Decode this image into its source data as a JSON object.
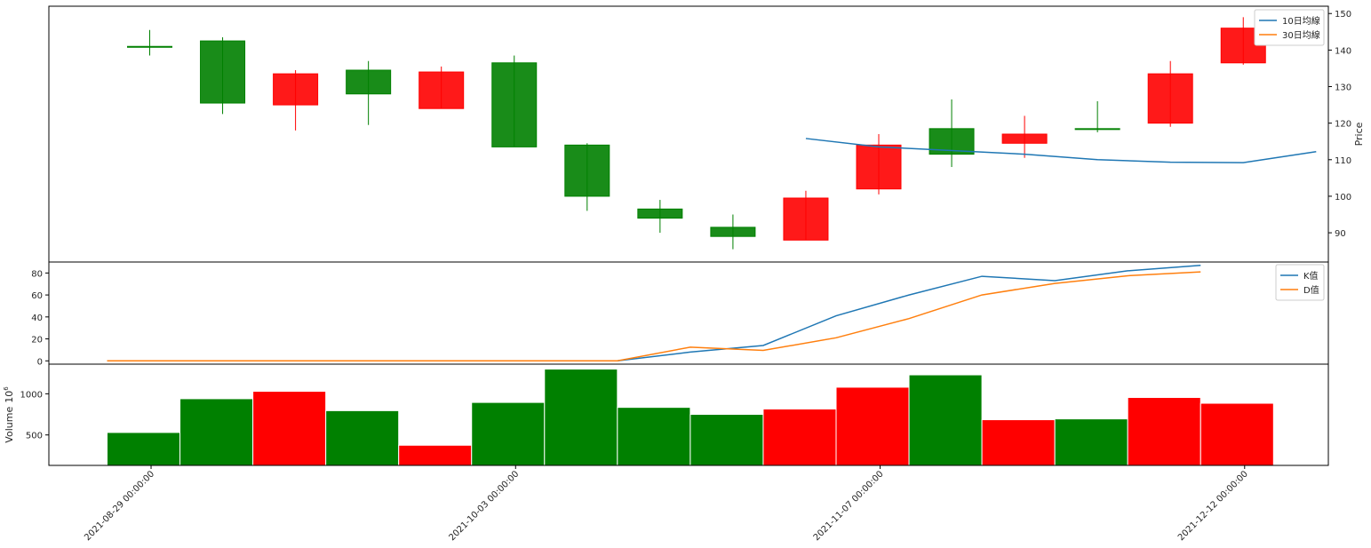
{
  "chart_data": [
    {
      "type": "candlestick",
      "panel": "price",
      "ylabel": "Price",
      "ylim": [
        82,
        152
      ],
      "yticks": [
        90,
        100,
        110,
        120,
        130,
        140,
        150
      ],
      "legend_position": "top-right",
      "up_color": "#ff0000",
      "down_color": "#008000",
      "candles": [
        {
          "open": 141,
          "high": 145.5,
          "low": 138.5,
          "close": 141
        },
        {
          "open": 142.5,
          "high": 143.5,
          "low": 122.5,
          "close": 125.5
        },
        {
          "open": 125,
          "high": 134.5,
          "low": 118,
          "close": 133.5
        },
        {
          "open": 134.5,
          "high": 137,
          "low": 119.5,
          "close": 128
        },
        {
          "open": 124,
          "high": 135.5,
          "low": 124,
          "close": 134
        },
        {
          "open": 136.5,
          "high": 138.5,
          "low": 113.5,
          "close": 113.5
        },
        {
          "open": 114,
          "high": 114.5,
          "low": 96,
          "close": 100
        },
        {
          "open": 96.5,
          "high": 99,
          "low": 90,
          "close": 94
        },
        {
          "open": 91.5,
          "high": 95,
          "low": 85.5,
          "close": 89
        },
        {
          "open": 88,
          "high": 101.5,
          "low": 88,
          "close": 99.5
        },
        {
          "open": 102,
          "high": 117,
          "low": 100.5,
          "close": 114
        },
        {
          "open": 118.5,
          "high": 126.5,
          "low": 108,
          "close": 111.5
        },
        {
          "open": 114.5,
          "high": 122,
          "low": 110.5,
          "close": 117
        },
        {
          "open": 118.5,
          "high": 126,
          "low": 117.5,
          "close": 118.5
        },
        {
          "open": 120,
          "high": 137,
          "low": 119,
          "close": 133.5
        },
        {
          "open": 136.5,
          "high": 149,
          "low": 136,
          "close": 146
        }
      ],
      "series": [
        {
          "name": "10日均線",
          "color": "#1f77b4",
          "start_index": 9,
          "values": [
            115.8,
            113.5,
            112.5,
            111.5,
            110,
            109.3,
            109.2,
            112.2
          ]
        },
        {
          "name": "30日均線",
          "color": "#ff7f0e",
          "values": []
        }
      ]
    },
    {
      "type": "line",
      "panel": "kd",
      "ylim": [
        -3,
        90
      ],
      "yticks": [
        0,
        20,
        40,
        60,
        80
      ],
      "legend_position": "top-right",
      "series": [
        {
          "name": "K值",
          "color": "#1f77b4",
          "values": [
            0,
            0,
            0,
            0,
            0,
            0,
            0,
            0,
            8,
            14,
            41,
            60,
            77,
            73,
            82,
            87
          ]
        },
        {
          "name": "D值",
          "color": "#ff7f0e",
          "values": [
            0,
            0,
            0,
            0,
            0,
            0,
            0,
            0,
            12.5,
            9.5,
            21,
            38.5,
            60,
            70.5,
            77.5,
            81
          ]
        }
      ]
    },
    {
      "type": "bar",
      "panel": "volume",
      "ylabel_main": "Volume",
      "ylabel_exp": "10",
      "ylabel_sup": "6",
      "ylim": [
        130,
        1360
      ],
      "yticks": [
        500,
        1000
      ],
      "values": [
        530,
        940,
        1030,
        795,
        375,
        895,
        1300,
        835,
        750,
        815,
        1080,
        1230,
        685,
        695,
        955,
        885
      ],
      "colors": [
        "#008000",
        "#008000",
        "#ff0000",
        "#008000",
        "#ff0000",
        "#008000",
        "#008000",
        "#008000",
        "#008000",
        "#ff0000",
        "#ff0000",
        "#008000",
        "#ff0000",
        "#008000",
        "#ff0000",
        "#ff0000"
      ]
    }
  ],
  "xaxis": {
    "ticks": [
      {
        "index": 0.5,
        "label": "2021-08-29 00:00:00"
      },
      {
        "index": 5.5,
        "label": "2021-10-03 00:00:00"
      },
      {
        "index": 10.5,
        "label": "2021-11-07 00:00:00"
      },
      {
        "index": 15.5,
        "label": "2021-12-12 00:00:00"
      }
    ]
  }
}
